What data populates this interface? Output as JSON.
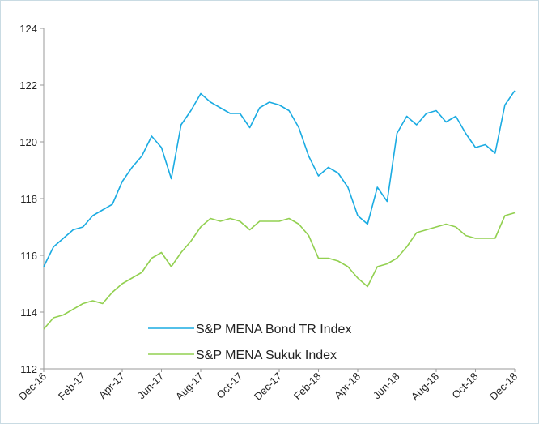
{
  "chart_data": {
    "type": "line",
    "categories": [
      "Dec-16",
      null,
      null,
      null,
      "Feb-17",
      null,
      null,
      null,
      "Apr-17",
      null,
      null,
      null,
      "Jun-17",
      null,
      null,
      null,
      "Aug-17",
      null,
      null,
      null,
      "Oct-17",
      null,
      null,
      null,
      "Dec-17",
      null,
      null,
      null,
      "Feb-18",
      null,
      null,
      null,
      "Apr-18",
      null,
      null,
      null,
      "Jun-18",
      null,
      null,
      null,
      "Aug-18",
      null,
      null,
      null,
      "Oct-18",
      null,
      null,
      null,
      "Dec-18"
    ],
    "series": [
      {
        "name": "S&P MENA Bond TR Index",
        "color": "#1aabe2",
        "values": [
          115.6,
          116.3,
          116.6,
          116.9,
          117.0,
          117.4,
          117.6,
          117.8,
          118.6,
          119.1,
          119.5,
          120.2,
          119.8,
          118.7,
          120.6,
          121.1,
          121.7,
          121.4,
          121.2,
          121.0,
          121.0,
          120.5,
          121.2,
          121.4,
          121.3,
          121.1,
          120.5,
          119.5,
          118.8,
          119.1,
          118.9,
          118.4,
          117.4,
          117.1,
          118.4,
          117.9,
          120.3,
          120.9,
          120.6,
          121.0,
          121.1,
          120.7,
          120.9,
          120.3,
          119.8,
          119.9,
          119.6,
          121.3,
          121.8
        ]
      },
      {
        "name": "S&P MENA Sukuk Index",
        "color": "#92d050",
        "values": [
          113.4,
          113.8,
          113.9,
          114.1,
          114.3,
          114.4,
          114.3,
          114.7,
          115.0,
          115.2,
          115.4,
          115.9,
          116.1,
          115.6,
          116.1,
          116.5,
          117.0,
          117.3,
          117.2,
          117.3,
          117.2,
          116.9,
          117.2,
          117.2,
          117.2,
          117.3,
          117.1,
          116.7,
          115.9,
          115.9,
          115.8,
          115.6,
          115.2,
          114.9,
          115.6,
          115.7,
          115.9,
          116.3,
          116.8,
          116.9,
          117.0,
          117.1,
          117.0,
          116.7,
          116.6,
          116.6,
          116.6,
          117.4,
          117.5
        ]
      }
    ],
    "ylim": [
      112,
      124
    ],
    "yticks": [
      112,
      114,
      116,
      118,
      120,
      122,
      124
    ]
  }
}
